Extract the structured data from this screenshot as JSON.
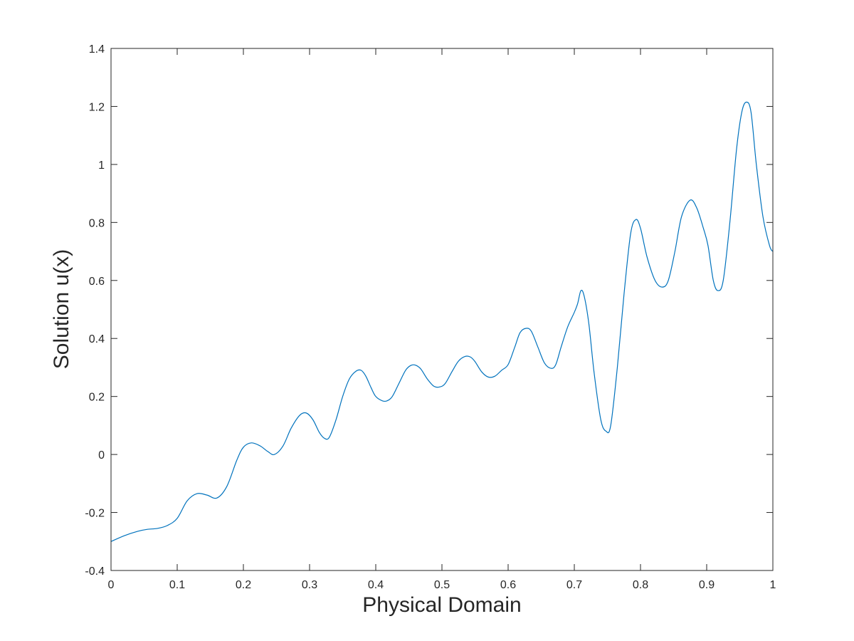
{
  "colors": {
    "line": "#0072BD",
    "axes": "#262626",
    "background": "#ffffff"
  },
  "chart_data": {
    "type": "line",
    "title": "",
    "xlabel": "Physical Domain",
    "ylabel": "Solution u(x)",
    "xlim": [
      0,
      1
    ],
    "ylim": [
      -0.4,
      1.4
    ],
    "grid": false,
    "box": true,
    "x_ticks": [
      {
        "value": 0,
        "label": "0"
      },
      {
        "value": 0.1,
        "label": "0.1"
      },
      {
        "value": 0.2,
        "label": "0.2"
      },
      {
        "value": 0.3,
        "label": "0.3"
      },
      {
        "value": 0.4,
        "label": "0.4"
      },
      {
        "value": 0.5,
        "label": "0.5"
      },
      {
        "value": 0.6,
        "label": "0.6"
      },
      {
        "value": 0.7,
        "label": "0.7"
      },
      {
        "value": 0.8,
        "label": "0.8"
      },
      {
        "value": 0.9,
        "label": "0.9"
      },
      {
        "value": 1,
        "label": "1"
      }
    ],
    "y_ticks": [
      {
        "value": -0.4,
        "label": "-0.4"
      },
      {
        "value": -0.2,
        "label": "-0.2"
      },
      {
        "value": 0,
        "label": "0"
      },
      {
        "value": 0.2,
        "label": "0.2"
      },
      {
        "value": 0.4,
        "label": "0.4"
      },
      {
        "value": 0.6,
        "label": "0.6"
      },
      {
        "value": 0.8,
        "label": "0.8"
      },
      {
        "value": 1,
        "label": "1"
      },
      {
        "value": 1.2,
        "label": "1.2"
      },
      {
        "value": 1.4,
        "label": "1.4"
      }
    ],
    "series": [
      {
        "x": [
          0,
          0.02,
          0.04,
          0.055,
          0.07,
          0.085,
          0.1,
          0.115,
          0.13,
          0.145,
          0.16,
          0.175,
          0.19,
          0.2,
          0.212,
          0.225,
          0.237,
          0.247,
          0.26,
          0.272,
          0.285,
          0.295,
          0.305,
          0.315,
          0.323,
          0.33,
          0.34,
          0.35,
          0.36,
          0.37,
          0.378,
          0.385,
          0.393,
          0.4,
          0.41,
          0.417,
          0.425,
          0.435,
          0.445,
          0.453,
          0.46,
          0.468,
          0.478,
          0.488,
          0.497,
          0.505,
          0.515,
          0.525,
          0.535,
          0.543,
          0.55,
          0.56,
          0.57,
          0.58,
          0.59,
          0.6,
          0.61,
          0.618,
          0.627,
          0.635,
          0.645,
          0.655,
          0.665,
          0.672,
          0.68,
          0.69,
          0.7,
          0.705,
          0.71,
          0.715,
          0.722,
          0.73,
          0.74,
          0.748,
          0.755,
          0.765,
          0.775,
          0.785,
          0.793,
          0.8,
          0.81,
          0.822,
          0.833,
          0.842,
          0.852,
          0.862,
          0.875,
          0.885,
          0.895,
          0.902,
          0.91,
          0.917,
          0.925,
          0.935,
          0.945,
          0.953,
          0.96,
          0.967,
          0.975,
          0.985,
          0.995,
          1
        ],
        "y": [
          -0.3,
          -0.28,
          -0.265,
          -0.258,
          -0.255,
          -0.245,
          -0.22,
          -0.16,
          -0.135,
          -0.14,
          -0.15,
          -0.11,
          -0.02,
          0.025,
          0.04,
          0.03,
          0.01,
          0.0,
          0.03,
          0.09,
          0.135,
          0.143,
          0.12,
          0.075,
          0.055,
          0.06,
          0.12,
          0.2,
          0.26,
          0.287,
          0.29,
          0.27,
          0.23,
          0.2,
          0.185,
          0.185,
          0.2,
          0.245,
          0.29,
          0.307,
          0.308,
          0.295,
          0.26,
          0.235,
          0.233,
          0.245,
          0.285,
          0.322,
          0.338,
          0.336,
          0.32,
          0.285,
          0.267,
          0.27,
          0.29,
          0.31,
          0.37,
          0.42,
          0.435,
          0.425,
          0.37,
          0.315,
          0.297,
          0.31,
          0.37,
          0.44,
          0.49,
          0.52,
          0.565,
          0.545,
          0.45,
          0.28,
          0.12,
          0.08,
          0.1,
          0.3,
          0.55,
          0.76,
          0.81,
          0.78,
          0.68,
          0.6,
          0.577,
          0.6,
          0.7,
          0.82,
          0.877,
          0.85,
          0.78,
          0.72,
          0.6,
          0.565,
          0.6,
          0.8,
          1.05,
          1.18,
          1.215,
          1.18,
          1.0,
          0.82,
          0.72,
          0.7
        ]
      }
    ]
  }
}
